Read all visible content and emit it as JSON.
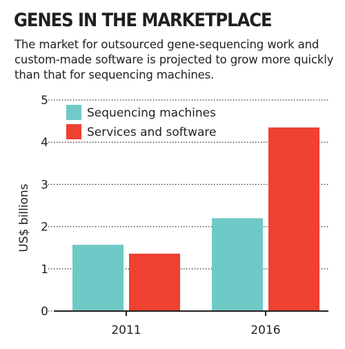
{
  "header": {
    "title": "GENES IN THE MARKETPLACE",
    "subtitle": "The market for outsourced gene-sequencing work and custom-made software is projected to grow more quickly than that for sequencing machines."
  },
  "colors": {
    "sequencing_machines": "#6ecac6",
    "services_software": "#ee4130",
    "text": "#231f20",
    "grid": "#231f20"
  },
  "chart_data": {
    "type": "bar",
    "categories": [
      "2011",
      "2016"
    ],
    "series": [
      {
        "name": "Sequencing machines",
        "values": [
          1.57,
          2.2
        ],
        "color": "#6ecac6"
      },
      {
        "name": "Services and software",
        "values": [
          1.36,
          4.35
        ],
        "color": "#ee4130"
      }
    ],
    "ylabel": "US$ billions",
    "xlabel": "",
    "ylim": [
      0,
      5
    ],
    "yticks": [
      "0",
      "1",
      "2",
      "3",
      "4",
      "5"
    ],
    "grid": true,
    "grid_style": "dotted",
    "legend_position": "top-left"
  }
}
